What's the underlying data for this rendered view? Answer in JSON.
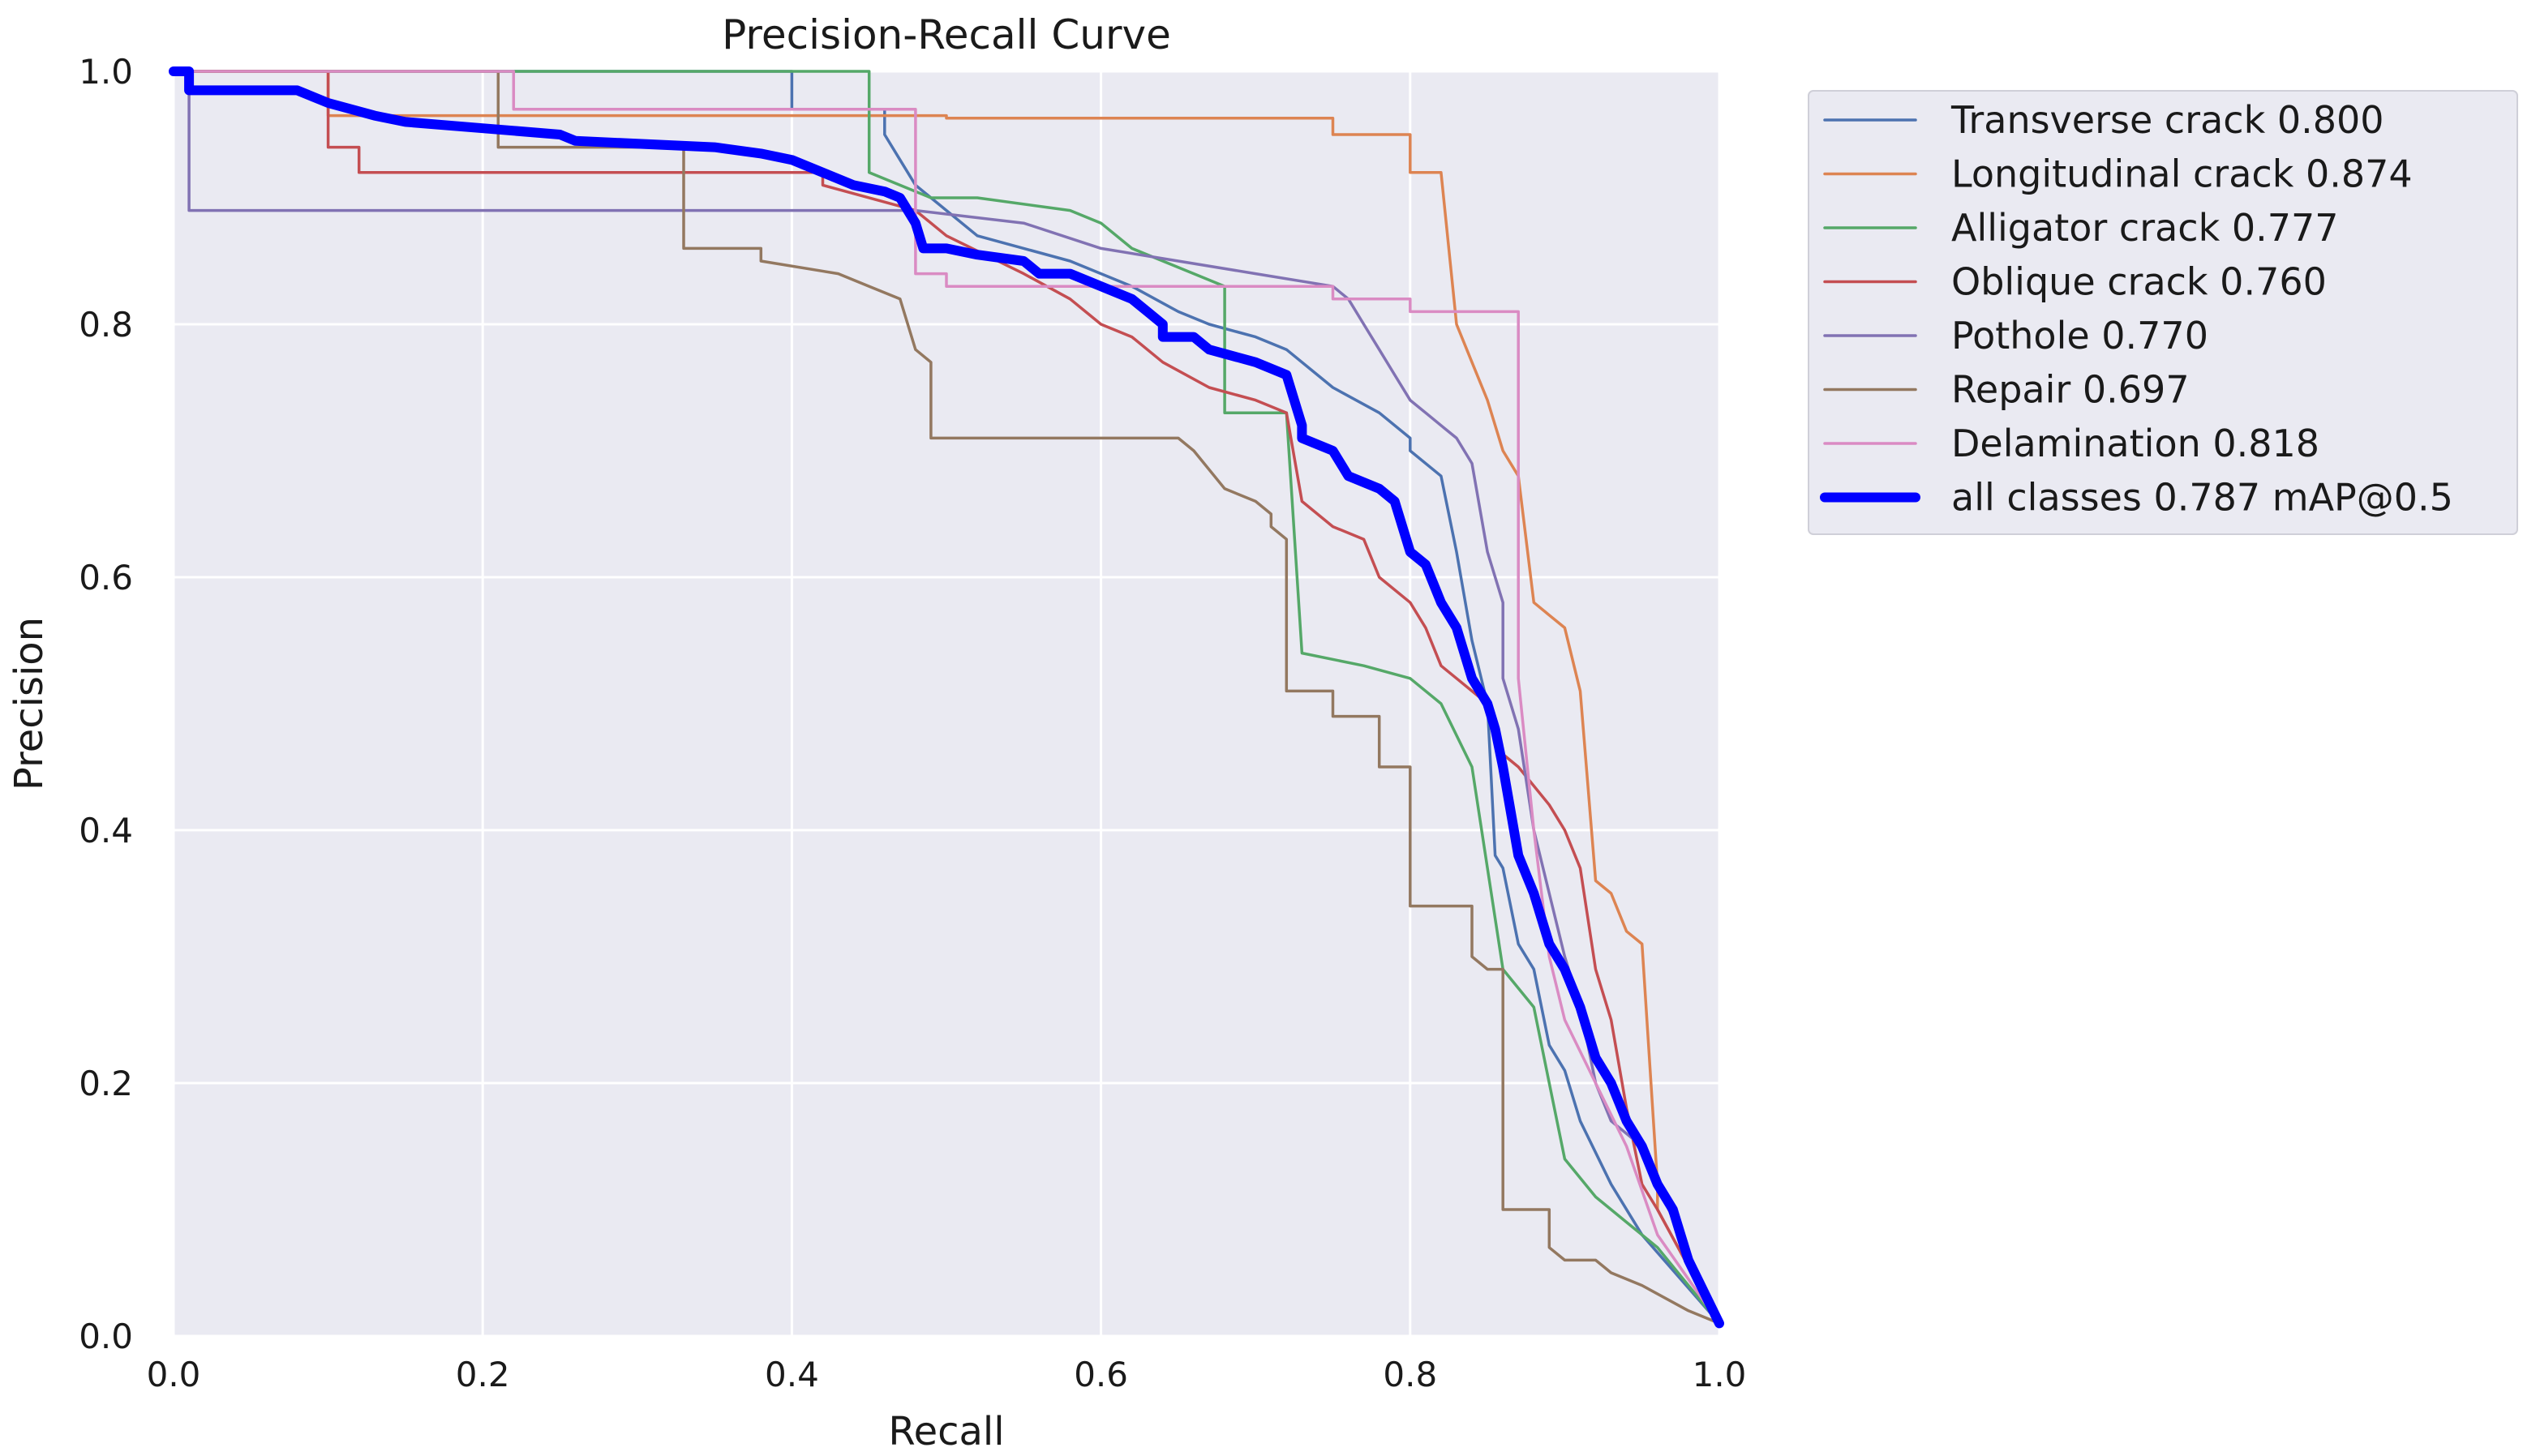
{
  "chart_data": {
    "type": "line",
    "title": "Precision-Recall Curve",
    "xlabel": "Recall",
    "ylabel": "Precision",
    "xlim": [
      0,
      1
    ],
    "ylim": [
      0,
      1
    ],
    "xticks": [
      "0.0",
      "0.2",
      "0.4",
      "0.6",
      "0.8",
      "1.0"
    ],
    "yticks": [
      "0.0",
      "0.2",
      "0.4",
      "0.6",
      "0.8",
      "1.0"
    ],
    "grid": true,
    "legend_position": "outside-top-right",
    "series": [
      {
        "name": "Transverse crack 0.800",
        "color": "#4c72b0",
        "width": "thin",
        "x": [
          0,
          0.4,
          0.4,
          0.46,
          0.46,
          0.47,
          0.48,
          0.5,
          0.52,
          0.55,
          0.58,
          0.6,
          0.62,
          0.65,
          0.67,
          0.7,
          0.72,
          0.74,
          0.75,
          0.78,
          0.8,
          0.8,
          0.82,
          0.83,
          0.84,
          0.85,
          0.855,
          0.86,
          0.87,
          0.88,
          0.89,
          0.9,
          0.91,
          0.93,
          0.95,
          1.0
        ],
        "y": [
          1.0,
          1.0,
          0.97,
          0.97,
          0.95,
          0.93,
          0.91,
          0.89,
          0.87,
          0.86,
          0.85,
          0.84,
          0.83,
          0.81,
          0.8,
          0.79,
          0.78,
          0.76,
          0.75,
          0.73,
          0.71,
          0.7,
          0.68,
          0.62,
          0.55,
          0.5,
          0.38,
          0.37,
          0.31,
          0.29,
          0.23,
          0.21,
          0.17,
          0.12,
          0.08,
          0.01
        ]
      },
      {
        "name": "Longitudinal crack 0.874",
        "color": "#dd8452",
        "width": "thin",
        "x": [
          0,
          0.1,
          0.1,
          0.5,
          0.5,
          0.75,
          0.75,
          0.8,
          0.8,
          0.82,
          0.83,
          0.84,
          0.85,
          0.86,
          0.87,
          0.88,
          0.89,
          0.9,
          0.91,
          0.92,
          0.93,
          0.94,
          0.95,
          0.96,
          0.96,
          1.0
        ],
        "y": [
          1.0,
          1.0,
          0.965,
          0.965,
          0.963,
          0.963,
          0.95,
          0.95,
          0.92,
          0.92,
          0.8,
          0.77,
          0.74,
          0.7,
          0.68,
          0.58,
          0.57,
          0.56,
          0.51,
          0.36,
          0.35,
          0.32,
          0.31,
          0.12,
          0.1,
          0.01
        ]
      },
      {
        "name": "Alligator crack 0.777",
        "color": "#55a868",
        "width": "thin",
        "x": [
          0,
          0.45,
          0.45,
          0.47,
          0.49,
          0.5,
          0.52,
          0.58,
          0.6,
          0.62,
          0.64,
          0.66,
          0.68,
          0.68,
          0.72,
          0.73,
          0.73,
          0.77,
          0.8,
          0.82,
          0.84,
          0.85,
          0.86,
          0.86,
          0.88,
          0.89,
          0.9,
          0.92,
          0.94,
          0.96,
          1.0
        ],
        "y": [
          1.0,
          1.0,
          0.92,
          0.91,
          0.9,
          0.9,
          0.9,
          0.89,
          0.88,
          0.86,
          0.85,
          0.84,
          0.83,
          0.73,
          0.73,
          0.54,
          0.54,
          0.53,
          0.52,
          0.5,
          0.45,
          0.37,
          0.29,
          0.29,
          0.26,
          0.2,
          0.14,
          0.11,
          0.09,
          0.07,
          0.01
        ]
      },
      {
        "name": "Oblique crack 0.760",
        "color": "#c44e52",
        "width": "thin",
        "x": [
          0,
          0.1,
          0.1,
          0.12,
          0.12,
          0.42,
          0.42,
          0.48,
          0.5,
          0.55,
          0.58,
          0.6,
          0.62,
          0.64,
          0.67,
          0.7,
          0.72,
          0.73,
          0.75,
          0.77,
          0.78,
          0.8,
          0.81,
          0.82,
          0.83,
          0.85,
          0.86,
          0.87,
          0.89,
          0.9,
          0.91,
          0.92,
          0.93,
          0.94,
          0.95,
          0.96,
          1.0
        ],
        "y": [
          1.0,
          1.0,
          0.94,
          0.94,
          0.92,
          0.92,
          0.91,
          0.89,
          0.87,
          0.84,
          0.82,
          0.8,
          0.79,
          0.77,
          0.75,
          0.74,
          0.73,
          0.66,
          0.64,
          0.63,
          0.6,
          0.58,
          0.56,
          0.53,
          0.52,
          0.5,
          0.46,
          0.45,
          0.42,
          0.4,
          0.37,
          0.29,
          0.25,
          0.18,
          0.12,
          0.1,
          0.01
        ]
      },
      {
        "name": "Pothole 0.770",
        "color": "#8172b3",
        "width": "thin",
        "x": [
          0,
          0.01,
          0.01,
          0.48,
          0.48,
          0.55,
          0.6,
          0.65,
          0.7,
          0.75,
          0.76,
          0.77,
          0.78,
          0.79,
          0.8,
          0.81,
          0.82,
          0.83,
          0.84,
          0.85,
          0.86,
          0.86,
          0.87,
          0.88,
          0.89,
          0.9,
          0.91,
          0.92,
          0.93,
          0.95,
          0.96,
          1.0
        ],
        "y": [
          1.0,
          1.0,
          0.89,
          0.89,
          0.89,
          0.88,
          0.86,
          0.85,
          0.84,
          0.83,
          0.82,
          0.8,
          0.78,
          0.76,
          0.74,
          0.73,
          0.72,
          0.71,
          0.69,
          0.62,
          0.58,
          0.52,
          0.48,
          0.4,
          0.35,
          0.3,
          0.26,
          0.2,
          0.17,
          0.15,
          0.12,
          0.01
        ]
      },
      {
        "name": "Repair 0.697",
        "color": "#937860",
        "width": "thin",
        "x": [
          0,
          0.21,
          0.21,
          0.33,
          0.33,
          0.38,
          0.38,
          0.43,
          0.45,
          0.47,
          0.48,
          0.49,
          0.49,
          0.65,
          0.66,
          0.68,
          0.7,
          0.71,
          0.71,
          0.72,
          0.72,
          0.75,
          0.75,
          0.78,
          0.78,
          0.8,
          0.8,
          0.84,
          0.84,
          0.85,
          0.86,
          0.86,
          0.89,
          0.89,
          0.9,
          0.92,
          0.93,
          0.95,
          0.98,
          1.0
        ],
        "y": [
          1.0,
          1.0,
          0.94,
          0.94,
          0.86,
          0.86,
          0.85,
          0.84,
          0.83,
          0.82,
          0.78,
          0.77,
          0.71,
          0.71,
          0.7,
          0.67,
          0.66,
          0.65,
          0.64,
          0.63,
          0.51,
          0.51,
          0.49,
          0.49,
          0.45,
          0.45,
          0.34,
          0.34,
          0.3,
          0.29,
          0.29,
          0.1,
          0.1,
          0.07,
          0.06,
          0.06,
          0.05,
          0.04,
          0.02,
          0.01
        ]
      },
      {
        "name": "Delamination 0.818",
        "color": "#da8bc3",
        "width": "thin",
        "x": [
          0,
          0.22,
          0.22,
          0.48,
          0.48,
          0.5,
          0.5,
          0.75,
          0.75,
          0.8,
          0.8,
          0.87,
          0.87,
          0.88,
          0.89,
          0.9,
          0.92,
          0.94,
          0.96,
          1.0
        ],
        "y": [
          1.0,
          1.0,
          0.97,
          0.97,
          0.84,
          0.84,
          0.83,
          0.83,
          0.82,
          0.82,
          0.81,
          0.81,
          0.52,
          0.4,
          0.3,
          0.25,
          0.2,
          0.15,
          0.08,
          0.01
        ]
      },
      {
        "name": "all classes 0.787 mAP@0.5",
        "color": "#0000ff",
        "width": "thick",
        "x": [
          0,
          0.01,
          0.01,
          0.08,
          0.1,
          0.13,
          0.15,
          0.2,
          0.25,
          0.26,
          0.35,
          0.38,
          0.4,
          0.42,
          0.44,
          0.46,
          0.47,
          0.48,
          0.485,
          0.5,
          0.52,
          0.55,
          0.56,
          0.58,
          0.6,
          0.62,
          0.63,
          0.64,
          0.64,
          0.66,
          0.67,
          0.7,
          0.72,
          0.73,
          0.73,
          0.75,
          0.76,
          0.78,
          0.79,
          0.8,
          0.81,
          0.82,
          0.83,
          0.84,
          0.85,
          0.855,
          0.86,
          0.87,
          0.88,
          0.89,
          0.9,
          0.91,
          0.92,
          0.93,
          0.94,
          0.95,
          0.96,
          0.97,
          0.98,
          1.0
        ],
        "y": [
          1.0,
          1.0,
          0.985,
          0.985,
          0.975,
          0.965,
          0.96,
          0.955,
          0.95,
          0.945,
          0.94,
          0.935,
          0.93,
          0.92,
          0.91,
          0.905,
          0.9,
          0.88,
          0.86,
          0.86,
          0.855,
          0.85,
          0.84,
          0.84,
          0.83,
          0.82,
          0.81,
          0.8,
          0.79,
          0.79,
          0.78,
          0.77,
          0.76,
          0.72,
          0.71,
          0.7,
          0.68,
          0.67,
          0.66,
          0.62,
          0.61,
          0.58,
          0.56,
          0.52,
          0.5,
          0.48,
          0.45,
          0.38,
          0.35,
          0.31,
          0.29,
          0.26,
          0.22,
          0.2,
          0.17,
          0.15,
          0.12,
          0.1,
          0.06,
          0.01
        ]
      }
    ]
  }
}
